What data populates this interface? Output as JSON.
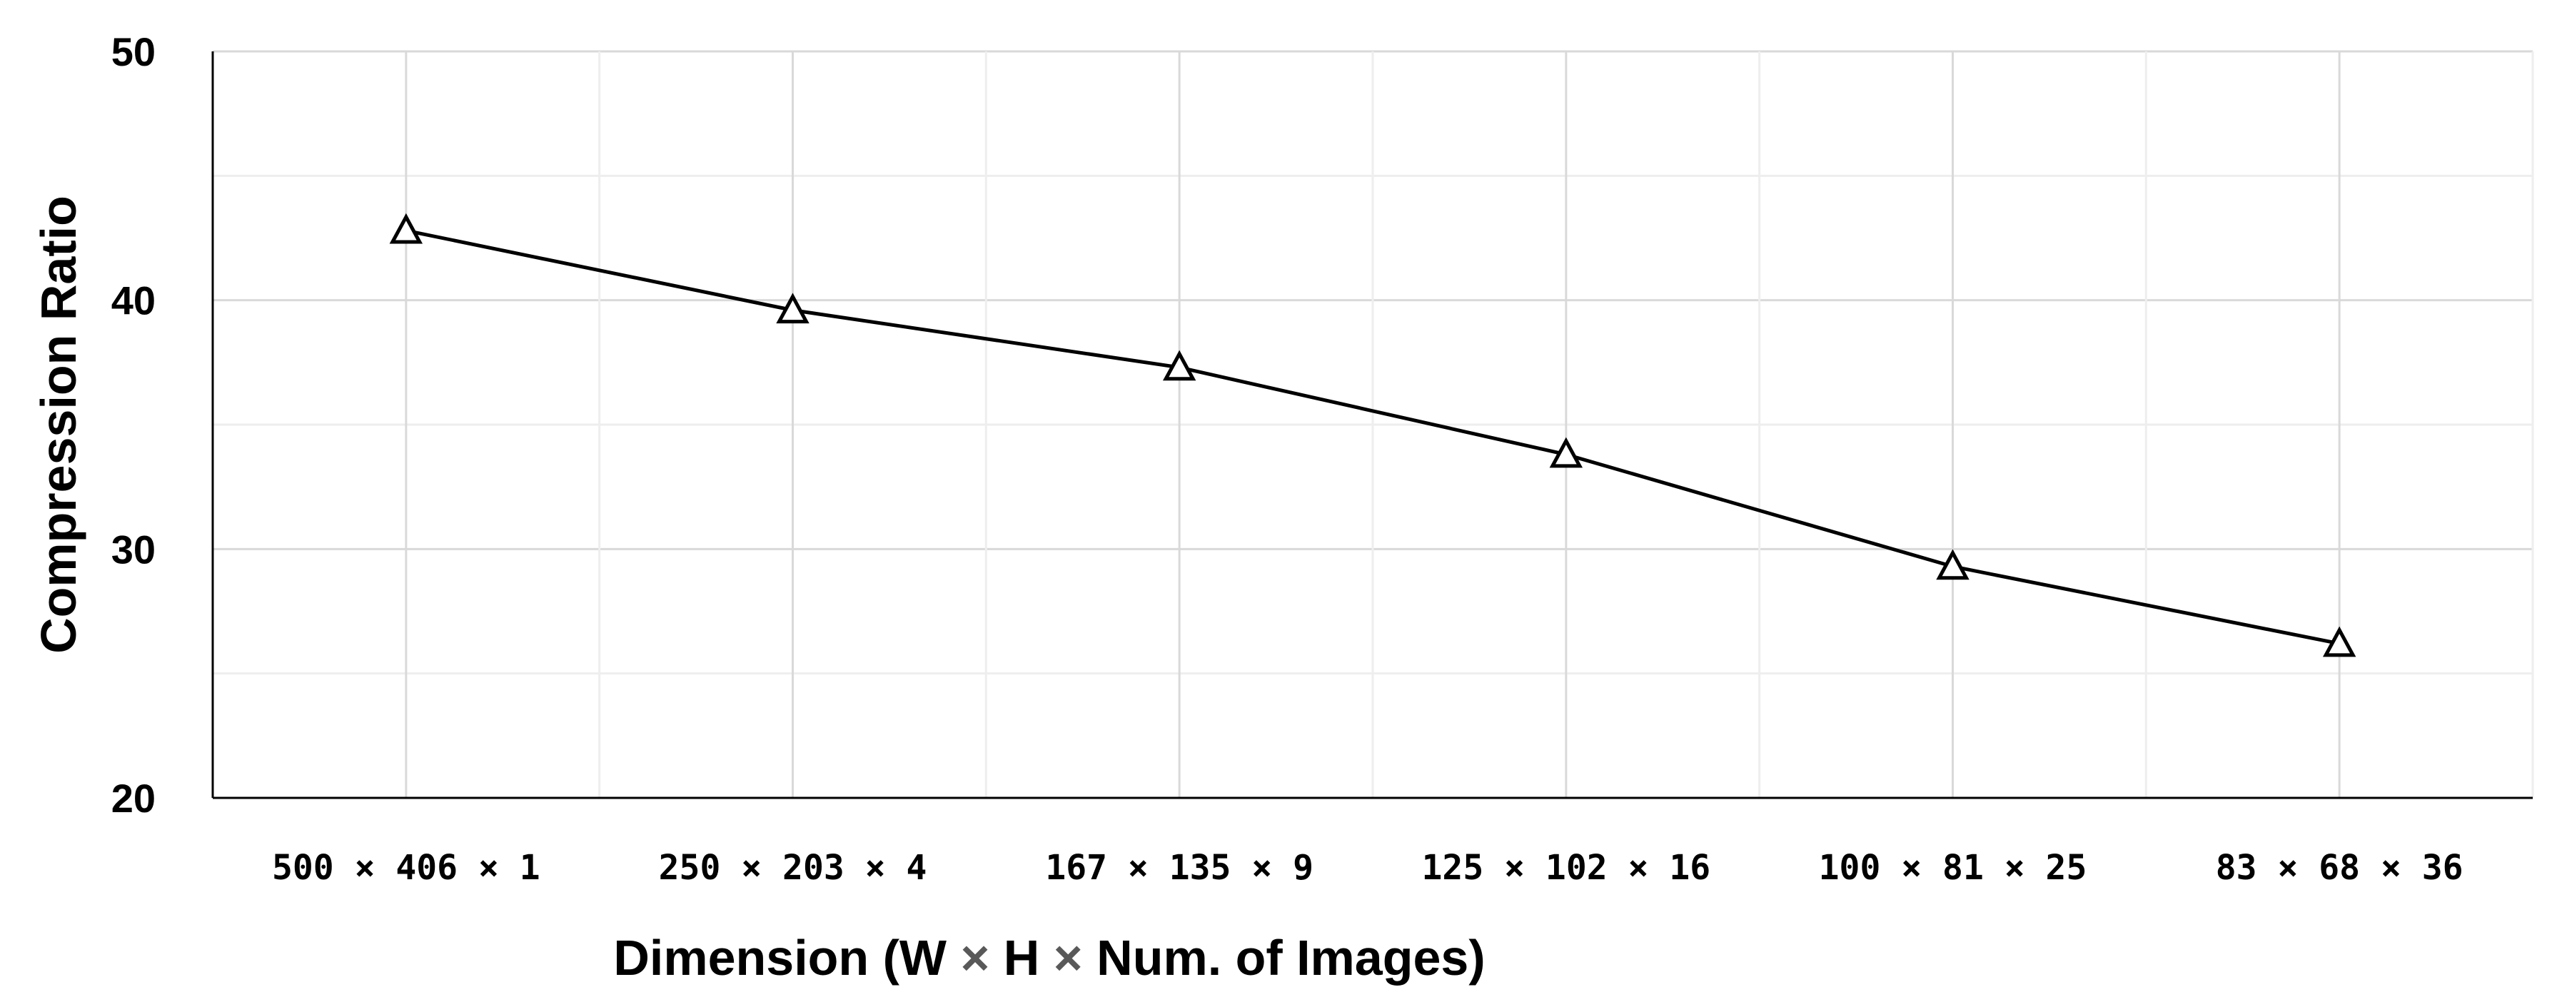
{
  "chart_data": {
    "type": "line",
    "title": "",
    "xlabel": "Dimension (W × H × Num. of Images)",
    "xlabel_parts": [
      "Dimension (W ",
      "×",
      " H ",
      "×",
      " Num. of Images)"
    ],
    "ylabel": "Compression Ratio",
    "categories": [
      "500 × 406 × 1",
      "250 × 203 × 4",
      "167 × 135 × 9",
      "125 × 102 × 16",
      "100 × 81 × 25",
      "83 × 68 × 36"
    ],
    "series": [
      {
        "values": [
          42.8,
          39.6,
          37.3,
          33.8,
          29.3,
          26.2
        ],
        "marker": "open-triangle",
        "color": "#000000"
      }
    ],
    "ylim": [
      20,
      50
    ],
    "yticks": [
      "20",
      "30",
      "40",
      "50"
    ],
    "grid": true,
    "legend": "none"
  }
}
